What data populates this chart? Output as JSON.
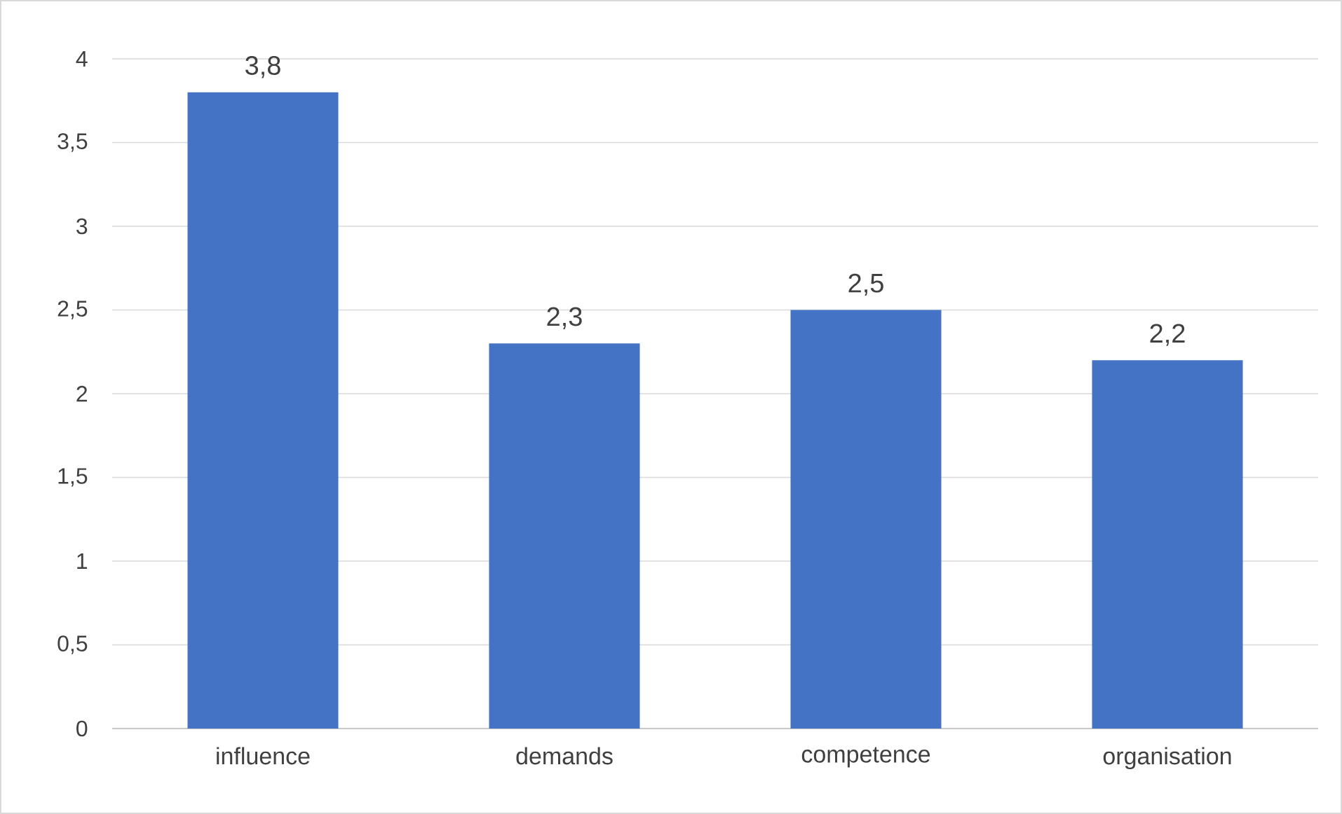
{
  "chart_data": {
    "type": "bar",
    "categories": [
      "influence",
      "demands",
      "competence",
      "organisation"
    ],
    "values": [
      3.8,
      2.3,
      2.5,
      2.2
    ],
    "color": "#4472c4",
    "value_labels": [
      "3,8",
      "2,3",
      "2,5",
      "2,2"
    ],
    "ylim": [
      0,
      4
    ],
    "yticks": [
      0,
      {
        "value": 0.5,
        "label": "0,5"
      },
      1,
      {
        "value": 1.5,
        "label": "1,5"
      },
      2,
      {
        "value": 2.5,
        "label": "2,5"
      },
      3,
      {
        "value": 3.5,
        "label": "3,5"
      },
      4
    ],
    "grid": "y"
  }
}
